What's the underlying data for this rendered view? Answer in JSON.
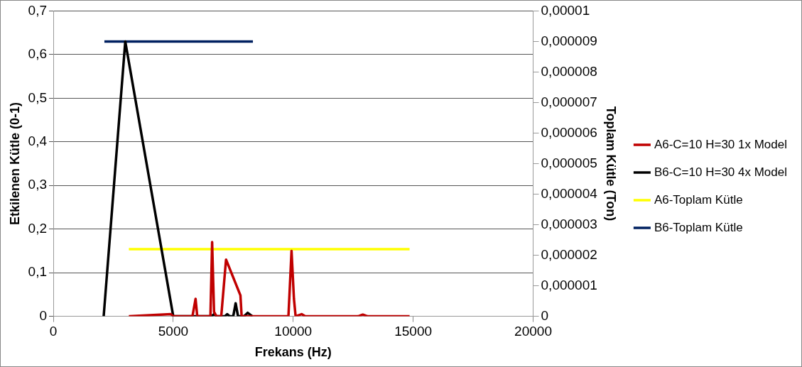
{
  "chart_data": {
    "type": "line",
    "xlabel": "Frekans (Hz)",
    "ylabel": "Etkilenen Kütle (0-1)",
    "y2label": "Toplam Kütle (Ton)",
    "xlim": [
      0,
      20000
    ],
    "xticks": [
      0,
      5000,
      10000,
      15000,
      20000
    ],
    "ylim": [
      0,
      0.7
    ],
    "yticks": [
      0,
      {
        "value": 0.1,
        "label": "0,1"
      },
      {
        "value": 0.2,
        "label": "0,2"
      },
      {
        "value": 0.3,
        "label": "0,3"
      },
      {
        "value": 0.4,
        "label": "0,4"
      },
      {
        "value": 0.5,
        "label": "0,5"
      },
      {
        "value": 0.6,
        "label": "0,6"
      },
      {
        "value": 0.7,
        "label": "0,7"
      }
    ],
    "y2lim": [
      0,
      1e-05
    ],
    "y2ticks": [
      0,
      {
        "value": 1e-06,
        "label": "0,000001"
      },
      {
        "value": 2e-06,
        "label": "0,000002"
      },
      {
        "value": 3e-06,
        "label": "0,000003"
      },
      {
        "value": 4e-06,
        "label": "0,000004"
      },
      {
        "value": 5e-06,
        "label": "0,000005"
      },
      {
        "value": 6e-06,
        "label": "0,000006"
      },
      {
        "value": 7e-06,
        "label": "0,000007"
      },
      {
        "value": 8e-06,
        "label": "0,000008"
      },
      {
        "value": 9e-06,
        "label": "0,000009"
      },
      {
        "value": 1e-05,
        "label": "0,00001"
      }
    ],
    "grid": "y",
    "legend": "right",
    "marker": "none",
    "line_style": "solid",
    "series": [
      {
        "name": "A6-C=10 H=30 1x Model",
        "color": "#c00000",
        "x": [
          3150,
          4900,
          5000,
          5800,
          5930,
          6000,
          6550,
          6620,
          6700,
          6800,
          7000,
          7200,
          7800,
          7850,
          9800,
          9930,
          10030,
          10100,
          10350,
          10500,
          12700,
          12900,
          13100,
          14850
        ],
        "values": [
          0,
          0.005,
          0,
          0,
          0.04,
          0,
          0,
          0.17,
          0.01,
          0,
          0,
          0.13,
          0.048,
          0,
          0,
          0.15,
          0.04,
          0,
          0.005,
          0,
          0,
          0.004,
          0,
          0
        ]
      },
      {
        "name": "B6-C=10 H=30 4x Model",
        "color": "#000000",
        "x": [
          2100,
          3000,
          5000,
          6600,
          6700,
          6800,
          7150,
          7250,
          7350,
          7500,
          7600,
          7700,
          7950,
          8100,
          8300
        ],
        "values": [
          0,
          0.63,
          0,
          0,
          0.005,
          0,
          0,
          0.005,
          0,
          0,
          0.03,
          0,
          0,
          0.008,
          0
        ]
      },
      {
        "name": "A6-Toplam Kütle",
        "color": "#ffff00",
        "axis": "y2",
        "x": [
          3150,
          14850
        ],
        "values": [
          2.2e-06,
          2.2e-06
        ]
      },
      {
        "name": "B6-Toplam Kütle",
        "color": "#002060",
        "axis": "y2",
        "x": [
          2130,
          8320
        ],
        "values": [
          9e-06,
          9e-06
        ]
      }
    ]
  }
}
